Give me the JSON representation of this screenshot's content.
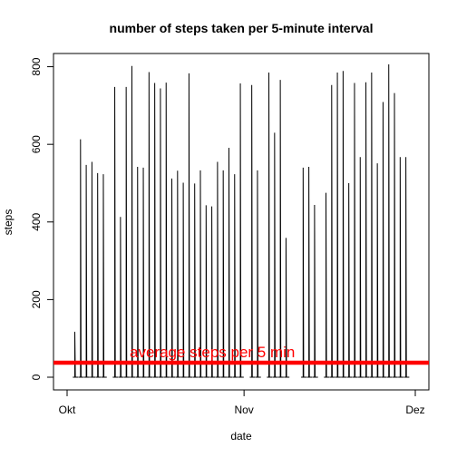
{
  "chart_data": {
    "type": "line",
    "title": "number of steps taken per 5-minute interval",
    "xlabel": "date",
    "ylabel": "steps",
    "x_ticks": [
      {
        "value": "2012-10-01",
        "label": "Okt"
      },
      {
        "value": "2012-11-01",
        "label": "Nov"
      },
      {
        "value": "2012-12-01",
        "label": "Dez"
      }
    ],
    "y_ticks": [
      0,
      200,
      400,
      600,
      800
    ],
    "xlim": [
      "2012-10-01",
      "2012-11-30"
    ],
    "ylim": [
      0,
      806
    ],
    "series": [
      {
        "color": "#000000",
        "x": [
          "2012-10-02",
          "2012-10-03",
          "2012-10-04",
          "2012-10-05",
          "2012-10-06",
          "2012-10-07",
          "2012-10-09",
          "2012-10-10",
          "2012-10-11",
          "2012-10-12",
          "2012-10-13",
          "2012-10-14",
          "2012-10-15",
          "2012-10-16",
          "2012-10-17",
          "2012-10-18",
          "2012-10-19",
          "2012-10-20",
          "2012-10-21",
          "2012-10-22",
          "2012-10-23",
          "2012-10-24",
          "2012-10-25",
          "2012-10-26",
          "2012-10-27",
          "2012-10-28",
          "2012-10-29",
          "2012-10-30",
          "2012-10-31",
          "2012-11-02",
          "2012-11-03",
          "2012-11-05",
          "2012-11-06",
          "2012-11-07",
          "2012-11-08",
          "2012-11-11",
          "2012-11-12",
          "2012-11-13",
          "2012-11-15",
          "2012-11-16",
          "2012-11-17",
          "2012-11-18",
          "2012-11-19",
          "2012-11-20",
          "2012-11-21",
          "2012-11-22",
          "2012-11-23",
          "2012-11-24",
          "2012-11-25",
          "2012-11-26",
          "2012-11-27",
          "2012-11-28",
          "2012-11-29"
        ],
        "values": [
          117,
          613,
          547,
          555,
          526,
          523,
          748,
          413,
          748,
          802,
          542,
          540,
          786,
          758,
          744,
          759,
          512,
          532,
          501,
          783,
          499,
          533,
          443,
          440,
          555,
          533,
          591,
          523,
          757,
          753,
          533,
          785,
          630,
          766,
          359,
          540,
          542,
          444,
          475,
          753,
          785,
          789,
          500,
          758,
          567,
          760,
          785,
          551,
          709,
          806,
          732,
          567,
          567
        ]
      }
    ],
    "reference_line": {
      "value": 37.38,
      "color": "#ff0000"
    },
    "annotation": "average steps per 5 min",
    "grid": false,
    "legend": "none"
  }
}
